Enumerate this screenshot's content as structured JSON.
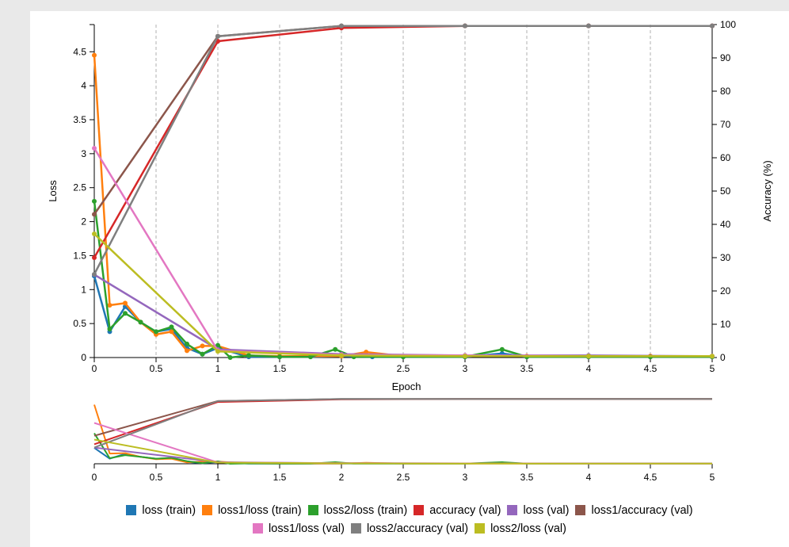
{
  "chart_data": [
    {
      "type": "line",
      "xlabel": "Epoch",
      "ylabel": "Loss",
      "y2label": "Accuracy (%)",
      "xlim": [
        0,
        5
      ],
      "ylim": [
        0,
        4.9
      ],
      "y2lim": [
        0,
        100
      ],
      "x_ticks": [
        "0",
        "0.5",
        "1",
        "1.5",
        "2",
        "2.5",
        "3",
        "3.5",
        "4",
        "4.5",
        "5"
      ],
      "y_ticks": [
        "0",
        "0.5",
        "1",
        "1.5",
        "2",
        "2.5",
        "3",
        "3.5",
        "4",
        "4.5"
      ],
      "y2_ticks": [
        "0",
        "10",
        "20",
        "30",
        "40",
        "50",
        "60",
        "70",
        "80",
        "90",
        "100"
      ],
      "vertical_grid": "dashed at each x tick",
      "series": [
        {
          "name": "loss (train)",
          "axis": "left",
          "color": "#1f77b4",
          "x": [
            0,
            0.125,
            0.25,
            0.375,
            0.5,
            0.625,
            0.75,
            0.875,
            1,
            1.25,
            1.5,
            1.75,
            2,
            2.25,
            2.5,
            3,
            3.3,
            3.5,
            4,
            4.5,
            5
          ],
          "y": [
            1.2,
            0.38,
            0.75,
            0.52,
            0.38,
            0.42,
            0.14,
            0.05,
            0.14,
            0.01,
            0.01,
            0.01,
            0.02,
            0.01,
            0.01,
            0.01,
            0.06,
            0.01,
            0.01,
            0.01,
            0.01
          ]
        },
        {
          "name": "loss1/loss (train)",
          "axis": "left",
          "color": "#ff7f0e",
          "x": [
            0,
            0.125,
            0.25,
            0.375,
            0.5,
            0.625,
            0.75,
            0.875,
            1,
            1.25,
            1.5,
            1.75,
            2,
            2.2,
            2.5,
            3,
            3.5,
            4,
            4.5,
            5
          ],
          "y": [
            4.45,
            0.77,
            0.8,
            0.52,
            0.34,
            0.38,
            0.1,
            0.17,
            0.17,
            0.03,
            0.02,
            0.02,
            0.02,
            0.08,
            0.02,
            0.02,
            0.02,
            0.02,
            0.02,
            0.02
          ]
        },
        {
          "name": "loss2/loss (train)",
          "axis": "left",
          "color": "#2ca02c",
          "x": [
            0,
            0.125,
            0.25,
            0.375,
            0.5,
            0.625,
            0.75,
            0.875,
            1,
            1.1,
            1.25,
            1.5,
            1.75,
            1.95,
            2.1,
            2.5,
            3,
            3.3,
            3.5,
            4,
            4.5,
            5
          ],
          "y": [
            2.3,
            0.42,
            0.65,
            0.52,
            0.38,
            0.45,
            0.2,
            0.05,
            0.18,
            0.0,
            0.03,
            0.01,
            0.01,
            0.12,
            0.01,
            0.01,
            0.01,
            0.12,
            0.01,
            0.01,
            0.01,
            0.01
          ]
        },
        {
          "name": "accuracy (val)",
          "axis": "right",
          "color": "#d62728",
          "x": [
            0,
            1,
            2,
            3,
            4,
            5
          ],
          "y": [
            30,
            95,
            99,
            99.6,
            99.6,
            99.6
          ]
        },
        {
          "name": "loss (val)",
          "axis": "left",
          "color": "#9467bd",
          "x": [
            0,
            1,
            2,
            3,
            4,
            5
          ],
          "y": [
            1.22,
            0.12,
            0.05,
            0.03,
            0.03,
            0.02
          ]
        },
        {
          "name": "loss1/accuracy (val)",
          "axis": "right",
          "color": "#8c564b",
          "x": [
            0,
            1,
            2,
            3,
            4,
            5
          ],
          "y": [
            43,
            96.5,
            99.6,
            99.6,
            99.6,
            99.6
          ]
        },
        {
          "name": "loss1/loss (val)",
          "axis": "left",
          "color": "#e377c2",
          "x": [
            0,
            1,
            2,
            3,
            4,
            5
          ],
          "y": [
            3.08,
            0.1,
            0.04,
            0.03,
            0.02,
            0.02
          ]
        },
        {
          "name": "loss2/accuracy (val)",
          "axis": "right",
          "color": "#7f7f7f",
          "x": [
            0,
            1,
            2,
            3,
            4,
            5
          ],
          "y": [
            25,
            96.5,
            99.6,
            99.6,
            99.6,
            99.6
          ]
        },
        {
          "name": "loss2/loss (val)",
          "axis": "left",
          "color": "#bcbd22",
          "x": [
            0,
            1,
            2,
            3,
            4,
            5
          ],
          "y": [
            1.82,
            0.09,
            0.03,
            0.02,
            0.02,
            0.02
          ]
        }
      ]
    },
    {
      "type": "line",
      "role": "overview / range selector",
      "xlim": [
        0,
        5
      ],
      "x_ticks": [
        "0",
        "0.5",
        "1",
        "1.5",
        "2",
        "2.5",
        "3",
        "3.5",
        "4",
        "4.5",
        "5"
      ],
      "series_from": "same series as main chart"
    }
  ]
}
